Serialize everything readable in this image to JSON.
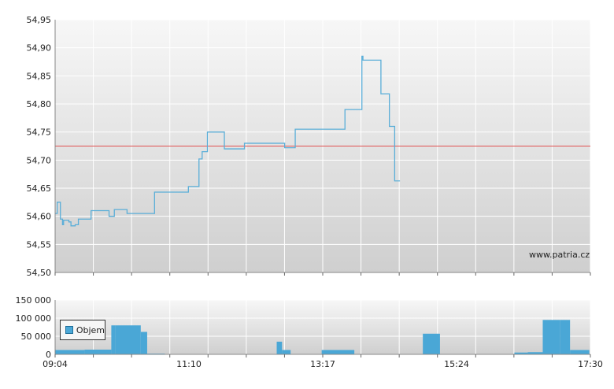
{
  "watermark": "www.patria.cz",
  "legend": {
    "label": "Objem",
    "color": "#4aa7d6"
  },
  "chart_data": [
    {
      "type": "line",
      "ylim": [
        54.5,
        54.95
      ],
      "y_ticks": [
        "54,50",
        "54,55",
        "54,60",
        "54,65",
        "54,70",
        "54,75",
        "54,80",
        "54,85",
        "54,90",
        "54,95"
      ],
      "y_tick_values": [
        54.5,
        54.55,
        54.6,
        54.65,
        54.7,
        54.75,
        54.8,
        54.85,
        54.9,
        54.95
      ],
      "reference_line": {
        "value": 54.725,
        "color": "#e05050"
      },
      "line_color": "#5aaed8",
      "grid": true,
      "x_range": [
        "09:04",
        "17:30"
      ],
      "series": [
        {
          "step": true,
          "points": [
            [
              "09:04",
              54.605
            ],
            [
              "09:06",
              54.625
            ],
            [
              "09:09",
              54.595
            ],
            [
              "09:11",
              54.585
            ],
            [
              "09:12",
              54.593
            ],
            [
              "09:17",
              54.59
            ],
            [
              "09:19",
              54.583
            ],
            [
              "09:23",
              54.585
            ],
            [
              "09:26",
              54.595
            ],
            [
              "09:38",
              54.61
            ],
            [
              "09:55",
              54.6
            ],
            [
              "10:00",
              54.612
            ],
            [
              "10:12",
              54.605
            ],
            [
              "10:38",
              54.643
            ],
            [
              "11:10",
              54.653
            ],
            [
              "11:20",
              54.702
            ],
            [
              "11:23",
              54.715
            ],
            [
              "11:28",
              54.75
            ],
            [
              "11:44",
              54.72
            ],
            [
              "12:03",
              54.73
            ],
            [
              "12:41",
              54.722
            ],
            [
              "12:51",
              54.755
            ],
            [
              "13:38",
              54.79
            ],
            [
              "13:54",
              54.885
            ],
            [
              "13:55",
              54.878
            ],
            [
              "14:12",
              54.818
            ],
            [
              "14:20",
              54.76
            ],
            [
              "14:25",
              54.663
            ],
            [
              "14:30",
              54.663
            ]
          ]
        }
      ]
    },
    {
      "type": "bar",
      "ylim": [
        0,
        150000
      ],
      "y_ticks": [
        "0",
        "50 000",
        "100 000",
        "150 000"
      ],
      "y_tick_values": [
        0,
        50000,
        100000,
        150000
      ],
      "x_ticks": [
        "09:04",
        "11:10",
        "13:17",
        "15:24",
        "17:30"
      ],
      "bar_color": "#4aa7d6",
      "grid": true,
      "series": [
        {
          "name": "Objem",
          "bars": [
            [
              0.0,
              0.055,
              12000
            ],
            [
              0.055,
              0.105,
              13000
            ],
            [
              0.105,
              0.113,
              80000
            ],
            [
              0.113,
              0.16,
              80000
            ],
            [
              0.16,
              0.172,
              62000
            ],
            [
              0.172,
              0.205,
              2000
            ],
            [
              0.414,
              0.424,
              35000
            ],
            [
              0.424,
              0.44,
              12000
            ],
            [
              0.498,
              0.559,
              12000
            ],
            [
              0.687,
              0.719,
              57000
            ],
            [
              0.858,
              0.883,
              5000
            ],
            [
              0.883,
              0.911,
              6000
            ],
            [
              0.911,
              0.943,
              95000
            ],
            [
              0.943,
              0.962,
              95000
            ],
            [
              0.962,
              0.998,
              12000
            ]
          ]
        }
      ]
    }
  ]
}
